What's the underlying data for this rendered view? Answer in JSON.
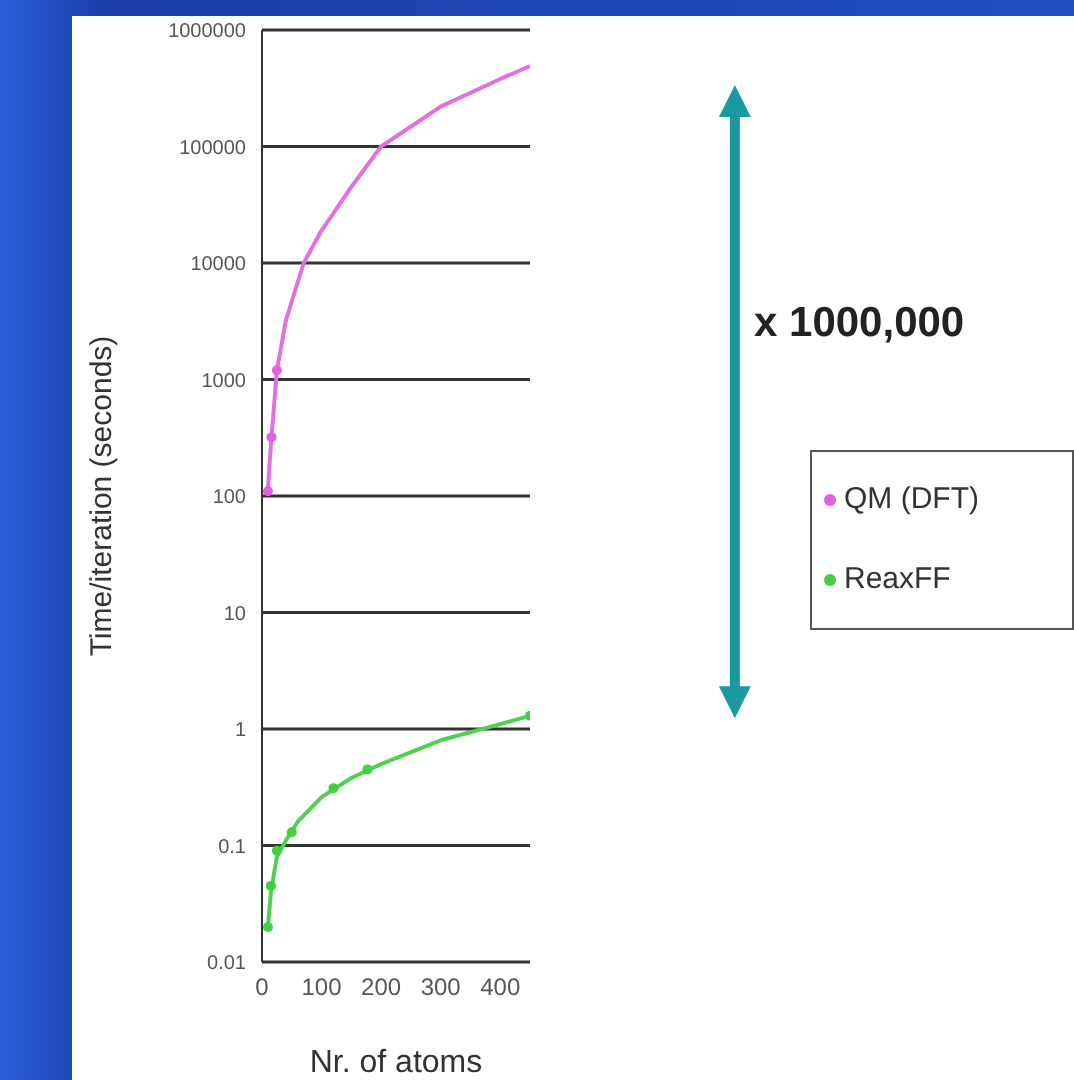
{
  "chart_data": {
    "type": "scatter",
    "xlabel": "Nr. of atoms",
    "ylabel": "Time/iteration (seconds)",
    "xlim": [
      0,
      450
    ],
    "xticks": [
      0,
      100,
      200,
      300,
      400
    ],
    "ylim": [
      0.01,
      1000000
    ],
    "yticks": [
      0.01,
      0.1,
      1,
      10,
      100,
      1000,
      10000,
      100000,
      1000000
    ],
    "log": "y",
    "grid": "y",
    "legend": "right",
    "marker": "circle",
    "annotations": [
      "x 1000,000"
    ],
    "series": [
      {
        "name": "QM (DFT)",
        "color": "#e060e0",
        "x": [
          10,
          16,
          25
        ],
        "values": [
          110,
          320,
          1200
        ]
      },
      {
        "color": "#e070e0",
        "type": "line",
        "marker": "none",
        "x": [
          10,
          13,
          16,
          25,
          40,
          70,
          100,
          150,
          200,
          300,
          400,
          450
        ],
        "values": [
          110,
          200,
          320,
          1200,
          3200,
          10000,
          19000,
          45000,
          100000,
          220000,
          380000,
          490000
        ]
      },
      {
        "name": "ReaxFF",
        "color": "#40d040",
        "x": [
          10,
          15,
          25,
          50,
          120,
          177,
          450
        ],
        "values": [
          0.02,
          0.045,
          0.09,
          0.13,
          0.31,
          0.45,
          1.3
        ]
      },
      {
        "color": "#50d050",
        "type": "line",
        "marker": "none",
        "x": [
          10,
          15,
          25,
          40,
          60,
          100,
          150,
          200,
          300,
          400,
          450
        ],
        "values": [
          0.02,
          0.04,
          0.08,
          0.11,
          0.16,
          0.26,
          0.38,
          0.5,
          0.8,
          1.1,
          1.3
        ]
      }
    ]
  }
}
